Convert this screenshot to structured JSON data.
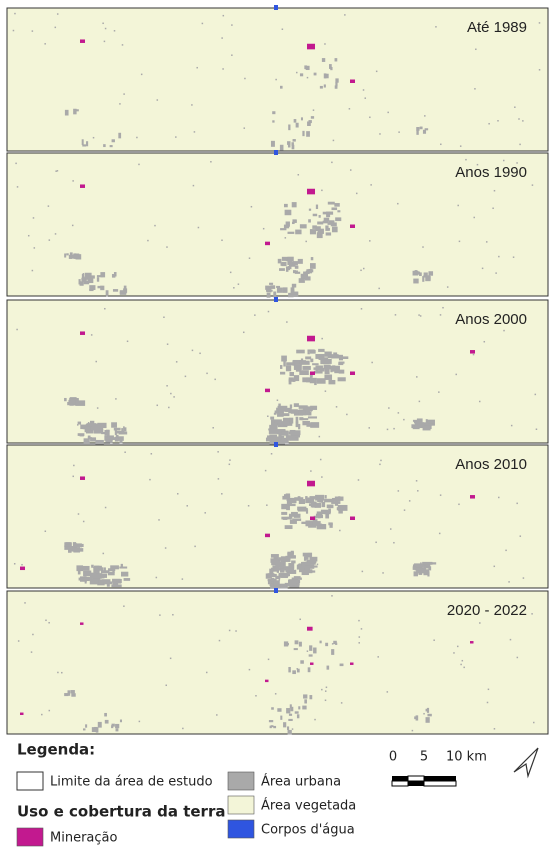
{
  "panels": [
    {
      "label": "Até 1989"
    },
    {
      "label": "Anos 1990"
    },
    {
      "label": "Anos 2000"
    },
    {
      "label": "Anos 2010"
    },
    {
      "label": "2020 - 2022"
    }
  ],
  "legend": {
    "title": "Legenda:",
    "boundary": "Limite da área de estudo",
    "section": "Uso e cobertura da terra",
    "items": [
      {
        "label": "Mineração",
        "color": "#c2198f"
      },
      {
        "label": "Área urbana",
        "color": "#a9a9a9"
      },
      {
        "label": "Área vegetada",
        "color": "#f3f5d8"
      },
      {
        "label": "Corpos d'água",
        "color": "#2f55e0"
      }
    ]
  },
  "scale": {
    "labels": [
      "0",
      "5",
      "10 km"
    ]
  }
}
